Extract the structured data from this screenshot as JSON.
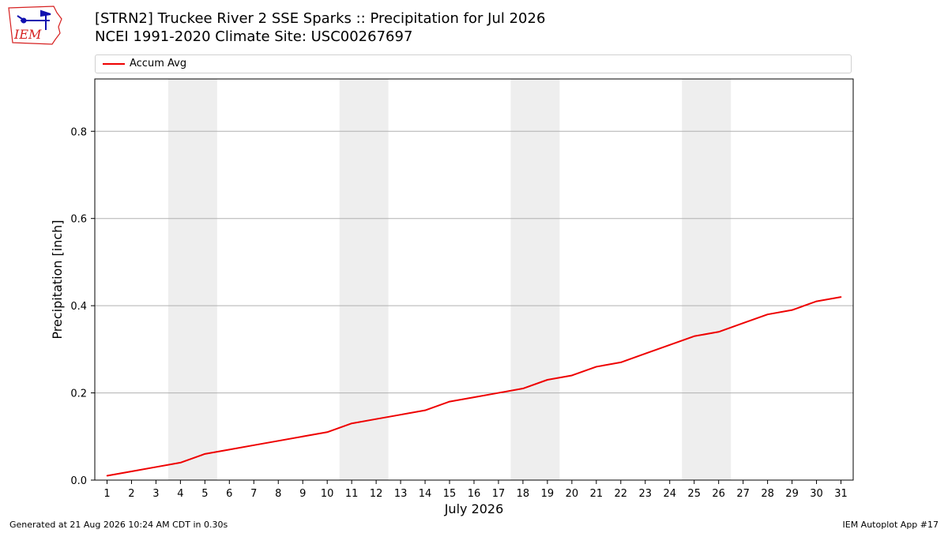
{
  "header": {
    "logo_text": "IEM",
    "title_line1": "[STRN2] Truckee River 2 SSE Sparks :: Precipitation for Jul 2026",
    "title_line2": "NCEI 1991-2020 Climate Site: USC00267697"
  },
  "footer": {
    "generated": "Generated at 21 Aug 2026 10:24 AM CDT in 0.30s",
    "app": "IEM Autoplot App #17"
  },
  "colors": {
    "series": "#ee0000",
    "weekend_band": "#eeeeee",
    "grid": "#b0b0b0",
    "logo": "#d62020"
  },
  "chart_data": {
    "type": "line",
    "xlabel": "July 2026",
    "ylabel": "Precipitation [inch]",
    "xlim": [
      0.5,
      31.5
    ],
    "ylim": [
      0.0,
      0.92
    ],
    "yticks": [
      0.0,
      0.2,
      0.4,
      0.6,
      0.8
    ],
    "ytick_labels": [
      "0.0",
      "0.2",
      "0.4",
      "0.6",
      "0.8"
    ],
    "grid": "horizontal",
    "legend": "top, above plot",
    "weekend_bands": [
      [
        4,
        5
      ],
      [
        11,
        12
      ],
      [
        18,
        19
      ],
      [
        25,
        26
      ]
    ],
    "categories": [
      "1",
      "2",
      "3",
      "4",
      "5",
      "6",
      "7",
      "8",
      "9",
      "10",
      "11",
      "12",
      "13",
      "14",
      "15",
      "16",
      "17",
      "18",
      "19",
      "20",
      "21",
      "22",
      "23",
      "24",
      "25",
      "26",
      "27",
      "28",
      "29",
      "30",
      "31"
    ],
    "x": [
      1,
      2,
      3,
      4,
      5,
      6,
      7,
      8,
      9,
      10,
      11,
      12,
      13,
      14,
      15,
      16,
      17,
      18,
      19,
      20,
      21,
      22,
      23,
      24,
      25,
      26,
      27,
      28,
      29,
      30,
      31
    ],
    "series": [
      {
        "name": "Accum Avg",
        "values": [
          0.01,
          0.02,
          0.03,
          0.04,
          0.06,
          0.07,
          0.08,
          0.09,
          0.1,
          0.11,
          0.13,
          0.14,
          0.15,
          0.16,
          0.18,
          0.19,
          0.2,
          0.21,
          0.23,
          0.24,
          0.26,
          0.27,
          0.29,
          0.31,
          0.33,
          0.34,
          0.36,
          0.38,
          0.39,
          0.41,
          0.42
        ]
      }
    ]
  }
}
